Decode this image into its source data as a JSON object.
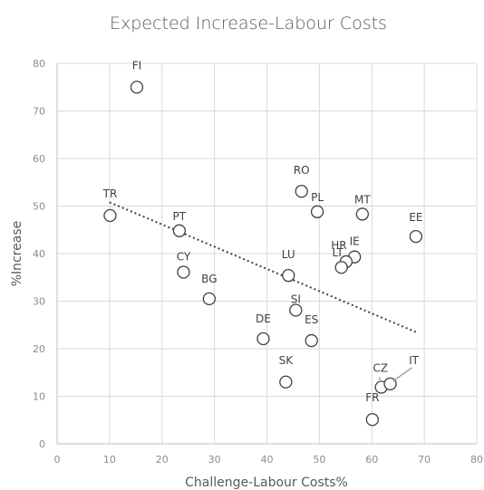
{
  "chart_data": {
    "type": "scatter",
    "title": "Expected Increase-Labour Costs",
    "xlabel": "Challenge-Labour Costs%",
    "ylabel": "%Increase",
    "xlim": [
      0,
      80
    ],
    "ylim": [
      0,
      80
    ],
    "x_ticks": [
      0,
      10,
      20,
      30,
      40,
      50,
      60,
      70,
      80
    ],
    "y_ticks": [
      0,
      10,
      20,
      30,
      40,
      50,
      60,
      70,
      80
    ],
    "grid": true,
    "legend": "none",
    "points": [
      {
        "label": "FI",
        "x": 15.2,
        "y": 75
      },
      {
        "label": "TR",
        "x": 10.1,
        "y": 48
      },
      {
        "label": "PT",
        "x": 23.3,
        "y": 44.8
      },
      {
        "label": "CY",
        "x": 24.1,
        "y": 36.1
      },
      {
        "label": "BG",
        "x": 29.0,
        "y": 30.5
      },
      {
        "label": "RO",
        "x": 46.6,
        "y": 53.1
      },
      {
        "label": "PL",
        "x": 49.6,
        "y": 48.8
      },
      {
        "label": "MT",
        "x": 58.2,
        "y": 48.3
      },
      {
        "label": "EE",
        "x": 68.4,
        "y": 43.6
      },
      {
        "label": "LU",
        "x": 44.1,
        "y": 35.4
      },
      {
        "label": "IE",
        "x": 56.7,
        "y": 39.3
      },
      {
        "label": "HR",
        "x": 55.1,
        "y": 38.3
      },
      {
        "label": "LT",
        "x": 54.2,
        "y": 37.1
      },
      {
        "label": "SI",
        "x": 45.5,
        "y": 28.1
      },
      {
        "label": "DE",
        "x": 39.3,
        "y": 22.1
      },
      {
        "label": "ES",
        "x": 48.5,
        "y": 21.7
      },
      {
        "label": "SK",
        "x": 43.6,
        "y": 13.0
      },
      {
        "label": "CZ",
        "x": 61.8,
        "y": 11.9
      },
      {
        "label": "IT",
        "x": 63.5,
        "y": 12.6
      },
      {
        "label": "FR",
        "x": 60.1,
        "y": 5.1
      }
    ],
    "trendline": {
      "type": "linear",
      "x": [
        10,
        68.4
      ],
      "y": [
        50.8,
        23.5
      ]
    }
  }
}
